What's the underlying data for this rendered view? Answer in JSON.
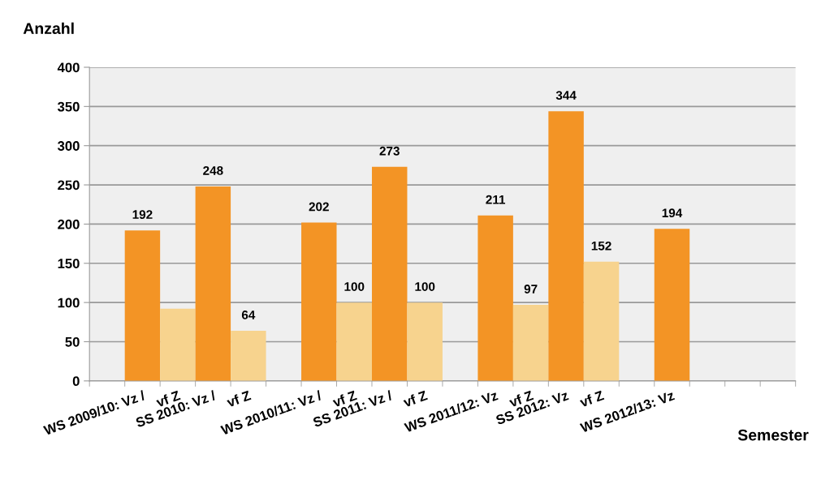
{
  "chart_data": {
    "type": "bar",
    "ylabel": "Anzahl",
    "xlabel": "Semester",
    "categories": [
      null,
      "WS 2009/10: Vz /",
      "vf Z",
      "SS 2010: Vz /",
      "vf Z",
      null,
      "WS 2010/11: Vz /",
      "vf Z",
      "SS 2011: Vz /",
      "vf Z",
      null,
      "WS 2011/12: Vz",
      "vf Z",
      "SS 2012: Vz",
      "vf Z",
      null,
      "WS 2012/13: Vz",
      null,
      null,
      null
    ],
    "values": [
      null,
      192,
      92,
      248,
      64,
      null,
      202,
      100,
      273,
      100,
      null,
      211,
      97,
      344,
      152,
      null,
      194,
      null,
      null,
      null
    ],
    "colors": [
      "#f39425",
      "#f39425",
      "#f7d38e",
      "#f39425",
      "#f7d38e",
      "#f39425",
      "#f39425",
      "#f7d38e",
      "#f39425",
      "#f7d38e",
      "#f39425",
      "#f39425",
      "#f7d38e",
      "#f39425",
      "#f7d38e",
      "#f39425",
      "#f39425",
      "#f39425",
      "#f39425",
      "#f39425"
    ],
    "value_labels": [
      null,
      "192",
      null,
      "248",
      "64",
      null,
      "202",
      "100",
      "273",
      "100",
      null,
      "211",
      "97",
      "344",
      "152",
      null,
      "194",
      null,
      null,
      null
    ],
    "ylim": [
      0,
      400
    ],
    "yticks": [
      0,
      50,
      100,
      150,
      200,
      250,
      300,
      350,
      400
    ],
    "grid": "y"
  }
}
